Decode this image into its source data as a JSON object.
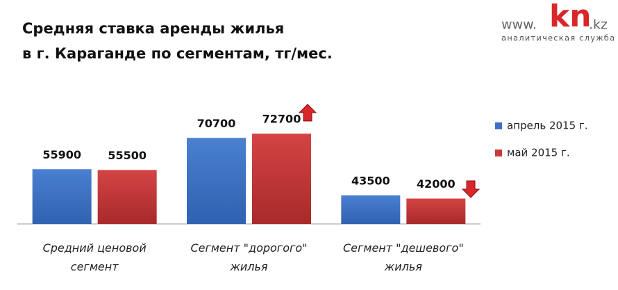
{
  "logo": {
    "prefix": "www.",
    "name": "kn",
    "suffix": ".kz",
    "tagline": "аналитическая служба"
  },
  "chart_data": {
    "type": "bar",
    "title": [
      "Средняя ставка аренды жилья",
      "в г. Караганде по сегментам, тг/мес."
    ],
    "categories": [
      "Средний ценовой сегмент",
      "Сегмент \"дорогого\" жилья",
      "Сегмент \"дешевого\" жилья"
    ],
    "series": [
      {
        "name": "апрель 2015 г.",
        "color": "#3d72c4",
        "values": [
          55900,
          70700,
          43500
        ]
      },
      {
        "name": "май 2015 г.",
        "color": "#c8393a",
        "values": [
          55500,
          72700,
          42000
        ]
      }
    ],
    "ylim": [
      30000,
      80000
    ],
    "legend": "right"
  }
}
